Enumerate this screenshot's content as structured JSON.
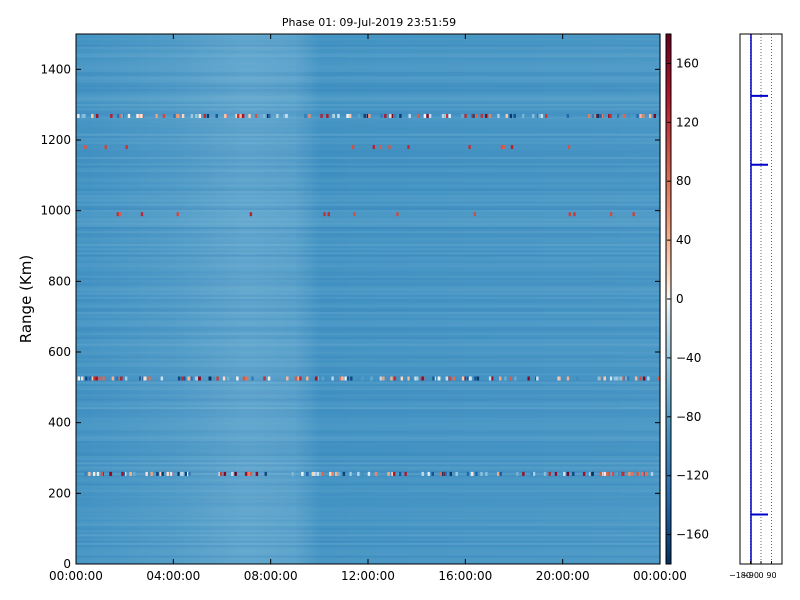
{
  "chart_data": [
    {
      "type": "heatmap",
      "title": "Phase 01: 09-Jul-2019 23:51:59",
      "ylabel": "Range (Km)",
      "xlabel": "",
      "x_ticks": [
        "00:00:00",
        "04:00:00",
        "08:00:00",
        "12:00:00",
        "16:00:00",
        "20:00:00",
        "00:00:00"
      ],
      "y_ticks": [
        0,
        200,
        400,
        600,
        800,
        1000,
        1200,
        1400
      ],
      "ylim": [
        0,
        1500
      ],
      "xlim_hours": [
        0,
        24
      ],
      "colorbar": {
        "ticks": [
          160,
          120,
          80,
          40,
          0,
          -40,
          -80,
          -120,
          -160
        ],
        "range": [
          -180,
          180
        ],
        "colormap": "RdBu_r"
      },
      "background_profile": [
        {
          "hour": 0,
          "value": -100
        },
        {
          "hour": 4,
          "value": -92
        },
        {
          "hour": 7,
          "value": -82
        },
        {
          "hour": 9,
          "value": -86
        },
        {
          "hour": 10,
          "value": -100
        },
        {
          "hour": 16,
          "value": -98
        },
        {
          "hour": 24,
          "value": -96
        }
      ],
      "noise_bands": [
        {
          "range_km": 1268,
          "value_range": [
            -180,
            180
          ]
        },
        {
          "range_km": 1180,
          "value_range": [
            100,
            140
          ]
        },
        {
          "range_km": 990,
          "value_range": [
            100,
            140
          ]
        },
        {
          "range_km": 525,
          "value_range": [
            -180,
            180
          ]
        },
        {
          "range_km": 255,
          "value_range": [
            -180,
            180
          ]
        }
      ]
    },
    {
      "type": "line",
      "title": "",
      "x_ticks": [
        "-180",
        "-90",
        "0",
        "90"
      ],
      "xlim": [
        -180,
        180
      ],
      "ylim": [
        0,
        1500
      ],
      "grid": true,
      "markers_range_km": [
        1325,
        1130,
        140
      ],
      "color": "#0000cc"
    }
  ],
  "colors": {
    "axis": "#000000",
    "line": "#0000cc"
  }
}
